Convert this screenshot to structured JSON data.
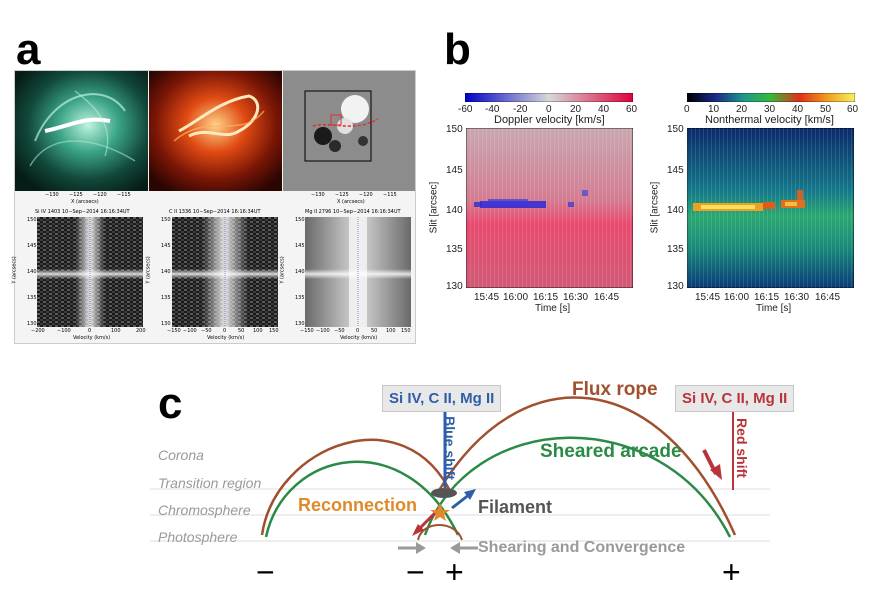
{
  "panel_a": {
    "letter": "a",
    "img_axis_ticks": [
      "−130",
      "−125",
      "−120",
      "−115"
    ],
    "img_axis_label": "X (arcsecs)",
    "spectra": [
      {
        "title": "Si IV 1403 10−Sep−2014 16:16:34UT",
        "xticks": [
          "−200",
          "−100",
          "0",
          "100",
          "200"
        ]
      },
      {
        "title": "C II 1336 10−Sep−2014 16:16:34UT",
        "xticks": [
          "−150",
          "−100",
          "−50",
          "0",
          "50",
          "100",
          "150"
        ]
      },
      {
        "title": "Mg II 2796 10−Sep−2014 16:16:34UT",
        "xticks": [
          "−150",
          "−100",
          "−50",
          "0",
          "50",
          "100",
          "150"
        ]
      }
    ],
    "spec_yticks": [
      "150",
      "145",
      "140",
      "135",
      "130"
    ],
    "spec_xlabel": "Velocity (km/s)",
    "spec_ylabel": "Y (arcsecs)"
  },
  "panel_b": {
    "letter": "b",
    "doppler": {
      "cbar_ticks": [
        "-60",
        "-40",
        "-20",
        "0",
        "20",
        "40",
        "60"
      ],
      "cbar_label": "Doppler velocity [km/s]"
    },
    "nonthermal": {
      "cbar_ticks": [
        "0",
        "10",
        "20",
        "30",
        "40",
        "50",
        "60"
      ],
      "cbar_label": "Nonthermal velocity [km/s]"
    },
    "yticks": [
      "150",
      "145",
      "140",
      "135",
      "130"
    ],
    "xticks": [
      "15:45",
      "16:00",
      "16:15",
      "16:30",
      "16:45"
    ],
    "xlabel": "Time [s]",
    "ylabel": "Slit [arcsec]"
  },
  "panel_c": {
    "letter": "c",
    "layers": [
      "Corona",
      "Transition region",
      "Chromosphere",
      "Photosphere"
    ],
    "blue_box": "Si IV, C II, Mg II",
    "red_box": "Si IV, C II, Mg II",
    "blue_shift": "Blue shift",
    "red_shift": "Red shift",
    "flux_rope": "Flux rope",
    "sheared_arcade": "Sheared arcade",
    "reconnection": "Reconnection",
    "filament": "Filament",
    "shearing": "Shearing and Convergence",
    "signs": [
      "−",
      "−",
      "+",
      "+"
    ],
    "colors": {
      "flux_rope": "#a0502e",
      "arcade": "#2a8a46",
      "blue": "#2f5ea8",
      "red": "#b8343a",
      "orange": "#e08a2c",
      "gray": "#9a9a9a"
    }
  }
}
